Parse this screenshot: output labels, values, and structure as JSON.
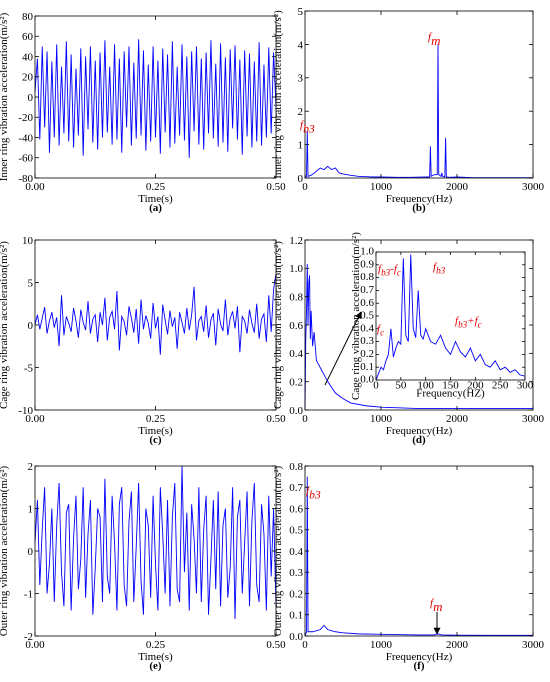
{
  "chart_data": [
    {
      "type": "line",
      "xlabel": "Time(s)",
      "ylabel": "Inner ring vibration acceleration(m/s²)",
      "caption": "(a)",
      "color": "#0000ff",
      "xlim": [
        0,
        0.5
      ],
      "ylim": [
        -80,
        80
      ],
      "xticks": [
        {
          "value": 0,
          "label": "0.00"
        },
        0.25,
        {
          "value": 0.5,
          "label": "0.50"
        }
      ],
      "yticks": [
        -80,
        -60,
        -40,
        -20,
        0,
        20,
        40,
        60,
        80
      ],
      "x": [
        0,
        0.005,
        0.01,
        0.015,
        0.02,
        0.025,
        0.03,
        0.035,
        0.04,
        0.045,
        0.05,
        0.055,
        0.06,
        0.065,
        0.07,
        0.075,
        0.08,
        0.085,
        0.09,
        0.095,
        0.1,
        0.105,
        0.11,
        0.115,
        0.12,
        0.125,
        0.13,
        0.135,
        0.14,
        0.145,
        0.15,
        0.155,
        0.16,
        0.165,
        0.17,
        0.175,
        0.18,
        0.185,
        0.19,
        0.195,
        0.2,
        0.205,
        0.21,
        0.215,
        0.22,
        0.225,
        0.23,
        0.235,
        0.24,
        0.245,
        0.25,
        0.255,
        0.26,
        0.265,
        0.27,
        0.275,
        0.28,
        0.285,
        0.29,
        0.295,
        0.3,
        0.305,
        0.31,
        0.315,
        0.32,
        0.325,
        0.33,
        0.335,
        0.34,
        0.345,
        0.35,
        0.355,
        0.36,
        0.365,
        0.37,
        0.375,
        0.38,
        0.385,
        0.39,
        0.395,
        0.4,
        0.405,
        0.41,
        0.415,
        0.42,
        0.425,
        0.43,
        0.435,
        0.44,
        0.445,
        0.45,
        0.455,
        0.46,
        0.465,
        0.47,
        0.475,
        0.48,
        0.485,
        0.49,
        0.495,
        0.5
      ],
      "values": [
        5,
        38,
        -42,
        50,
        -30,
        45,
        -55,
        35,
        -40,
        52,
        -48,
        30,
        -36,
        55,
        -44,
        42,
        -50,
        28,
        -38,
        48,
        -58,
        40,
        -32,
        50,
        -45,
        36,
        -52,
        44,
        -40,
        56,
        -35,
        30,
        -47,
        52,
        -42,
        38,
        -55,
        45,
        -30,
        50,
        -48,
        34,
        -41,
        57,
        -38,
        46,
        -53,
        32,
        -44,
        50,
        -40,
        36,
        -56,
        48,
        -35,
        42,
        -50,
        55,
        -46,
        30,
        -38,
        52,
        -43,
        40,
        -60,
        45,
        -34,
        50,
        -47,
        38,
        -52,
        44,
        -36,
        56,
        -41,
        33,
        -49,
        53,
        -45,
        39,
        -54,
        47,
        -31,
        51,
        -42,
        37,
        -57,
        46,
        -39,
        43,
        -50,
        35,
        -44,
        54,
        -48,
        32,
        -40,
        49,
        -36,
        44,
        -10
      ],
      "annotations": []
    },
    {
      "type": "line",
      "xlabel": "Frequency(Hz)",
      "ylabel": "Inner ring vibration acceleration(m/s²)",
      "caption": "(b)",
      "color": "#0000ff",
      "xlim": [
        0,
        3000
      ],
      "ylim": [
        0,
        5
      ],
      "xticks": [
        0,
        1000,
        2000,
        3000
      ],
      "yticks": [
        0,
        1,
        2,
        3,
        4,
        5
      ],
      "x": [
        0,
        20,
        30,
        40,
        80,
        150,
        200,
        250,
        300,
        350,
        400,
        450,
        500,
        600,
        700,
        800,
        900,
        1000,
        1200,
        1400,
        1600,
        1640,
        1650,
        1660,
        1700,
        1740,
        1750,
        1760,
        1790,
        1800,
        1810,
        1840,
        1850,
        1860,
        1900,
        2000,
        2200,
        2500,
        3000
      ],
      "values": [
        0,
        0.05,
        1.4,
        0.05,
        0.08,
        0.2,
        0.3,
        0.25,
        0.35,
        0.25,
        0.3,
        0.15,
        0.12,
        0.08,
        0.05,
        0.04,
        0.03,
        0.03,
        0.02,
        0.02,
        0.03,
        0.03,
        0.95,
        0.05,
        0.1,
        0.1,
        4.0,
        0.1,
        0.05,
        0.15,
        0.05,
        0.03,
        1.2,
        0.03,
        0.02,
        0.03,
        0.01,
        0.01,
        0.01
      ],
      "annotations": [
        [
          "f",
          "m"
        ],
        [
          "f",
          "b3"
        ]
      ]
    },
    {
      "type": "line",
      "xlabel": "Time(s)",
      "ylabel": "Cage ring vibration acceleration(m/s²)",
      "caption": "(c)",
      "color": "#0000ff",
      "xlim": [
        0,
        0.5
      ],
      "ylim": [
        -10,
        10
      ],
      "xticks": [
        {
          "value": 0,
          "label": "0.00"
        },
        0.25,
        {
          "value": 0.5,
          "label": "0.50"
        }
      ],
      "yticks": [
        -10,
        -5,
        0,
        5,
        10
      ],
      "x": [
        0,
        0.005,
        0.01,
        0.015,
        0.02,
        0.025,
        0.03,
        0.035,
        0.04,
        0.045,
        0.05,
        0.055,
        0.06,
        0.065,
        0.07,
        0.075,
        0.08,
        0.085,
        0.09,
        0.095,
        0.1,
        0.105,
        0.11,
        0.115,
        0.12,
        0.125,
        0.13,
        0.135,
        0.14,
        0.145,
        0.15,
        0.155,
        0.16,
        0.165,
        0.17,
        0.175,
        0.18,
        0.185,
        0.19,
        0.195,
        0.2,
        0.205,
        0.21,
        0.215,
        0.22,
        0.225,
        0.23,
        0.235,
        0.24,
        0.245,
        0.25,
        0.255,
        0.26,
        0.265,
        0.27,
        0.275,
        0.28,
        0.285,
        0.29,
        0.295,
        0.3,
        0.305,
        0.31,
        0.315,
        0.32,
        0.325,
        0.33,
        0.335,
        0.34,
        0.345,
        0.35,
        0.355,
        0.36,
        0.365,
        0.37,
        0.375,
        0.38,
        0.385,
        0.39,
        0.395,
        0.4,
        0.405,
        0.41,
        0.415,
        0.42,
        0.425,
        0.43,
        0.435,
        0.44,
        0.445,
        0.45,
        0.455,
        0.46,
        0.465,
        0.47,
        0.475,
        0.48,
        0.485,
        0.49,
        0.495,
        0.5
      ],
      "values": [
        0,
        1.2,
        -0.5,
        0.8,
        2.1,
        -1.0,
        0.5,
        1.5,
        -0.3,
        0.9,
        -2.5,
        3.5,
        -1.2,
        1.0,
        0.2,
        -0.8,
        2.0,
        0.5,
        -1.5,
        1.8,
        0.3,
        -0.6,
        2.8,
        -1.0,
        0.7,
        1.2,
        -2.0,
        1.5,
        0.0,
        3.2,
        -1.8,
        0.9,
        1.6,
        -0.5,
        4.0,
        -3.0,
        1.0,
        0.4,
        -1.2,
        2.2,
        0.8,
        -0.9,
        1.9,
        -2.2,
        3.0,
        -0.5,
        1.1,
        0.2,
        -1.6,
        2.6,
        -0.4,
        1.0,
        -3.5,
        2.4,
        0.6,
        -1.1,
        1.7,
        -0.2,
        0.9,
        -2.8,
        1.5,
        0.3,
        -1.0,
        2.0,
        -0.6,
        1.2,
        4.5,
        -1.8,
        0.5,
        1.0,
        -0.8,
        2.3,
        -1.5,
        0.6,
        1.4,
        -2.4,
        1.9,
        0.1,
        -0.7,
        3.0,
        -1.2,
        0.8,
        1.6,
        -0.4,
        2.2,
        -3.2,
        1.0,
        0.5,
        -1.0,
        1.8,
        0.2,
        -0.9,
        2.5,
        -1.6,
        0.7,
        1.3,
        -2.0,
        3.5,
        -0.8,
        4.2,
        6.0
      ],
      "annotations": []
    },
    {
      "type": "line",
      "xlabel": "Frequency(Hz)",
      "ylabel": "Cage ring vibration acceleration(m/s²)",
      "caption": "(d)",
      "color": "#0000ff",
      "xlim": [
        0,
        3000
      ],
      "ylim": [
        0,
        1.2
      ],
      "xticks": [
        0,
        1000,
        2000,
        3000
      ],
      "yticks": [
        {
          "value": 0,
          "label": "0.0"
        },
        0.2,
        0.4,
        0.6,
        0.8,
        {
          "value": 1,
          "label": "1.0"
        },
        1.2
      ],
      "x": [
        0,
        10,
        20,
        30,
        40,
        50,
        60,
        70,
        80,
        100,
        120,
        150,
        200,
        250,
        300,
        400,
        500,
        600,
        800,
        1000,
        1500,
        2000,
        3000
      ],
      "values": [
        0,
        0.5,
        0.7,
        1.03,
        0.6,
        0.9,
        0.95,
        0.5,
        0.7,
        0.45,
        0.55,
        0.35,
        0.3,
        0.25,
        0.2,
        0.12,
        0.08,
        0.05,
        0.03,
        0.02,
        0.01,
        0.01,
        0.01
      ],
      "annotations": []
    },
    {
      "type": "line",
      "xlabel": "Time(s)",
      "ylabel": "Outer ring vibration acceleration(m/s²)",
      "caption": "(e)",
      "color": "#0000ff",
      "xlim": [
        0,
        0.5
      ],
      "ylim": [
        -2,
        2
      ],
      "xticks": [
        {
          "value": 0,
          "label": "0.00"
        },
        0.25,
        {
          "value": 0.5,
          "label": "0.50"
        }
      ],
      "yticks": [
        -2,
        -1,
        0,
        1,
        2
      ],
      "x": [
        0,
        0.005,
        0.01,
        0.015,
        0.02,
        0.025,
        0.03,
        0.035,
        0.04,
        0.045,
        0.05,
        0.055,
        0.06,
        0.065,
        0.07,
        0.075,
        0.08,
        0.085,
        0.09,
        0.095,
        0.1,
        0.105,
        0.11,
        0.115,
        0.12,
        0.125,
        0.13,
        0.135,
        0.14,
        0.145,
        0.15,
        0.155,
        0.16,
        0.165,
        0.17,
        0.175,
        0.18,
        0.185,
        0.19,
        0.195,
        0.2,
        0.205,
        0.21,
        0.215,
        0.22,
        0.225,
        0.23,
        0.235,
        0.24,
        0.245,
        0.25,
        0.255,
        0.26,
        0.265,
        0.27,
        0.275,
        0.28,
        0.285,
        0.29,
        0.295,
        0.3,
        0.305,
        0.31,
        0.315,
        0.32,
        0.325,
        0.33,
        0.335,
        0.34,
        0.345,
        0.35,
        0.355,
        0.36,
        0.365,
        0.37,
        0.375,
        0.38,
        0.385,
        0.39,
        0.395,
        0.4,
        0.405,
        0.41,
        0.415,
        0.42,
        0.425,
        0.43,
        0.435,
        0.44,
        0.445,
        0.45,
        0.455,
        0.46,
        0.465,
        0.47,
        0.475,
        0.48,
        0.485,
        0.49,
        0.495,
        0.5
      ],
      "values": [
        0.2,
        1.2,
        -0.8,
        0.5,
        1.5,
        -1.0,
        -0.3,
        1.0,
        -1.2,
        0.6,
        1.6,
        -0.5,
        -1.3,
        0.9,
        1.1,
        -1.4,
        0.3,
        1.3,
        -0.9,
        -0.2,
        1.5,
        -1.1,
        0.4,
        1.2,
        -1.5,
        -0.4,
        1.0,
        0.8,
        -1.2,
        1.7,
        -0.6,
        -1.0,
        1.3,
        0.2,
        -1.4,
        1.1,
        1.5,
        -0.8,
        -1.3,
        0.7,
        1.4,
        -1.2,
        0.1,
        1.6,
        -0.7,
        -1.5,
        1.0,
        0.6,
        -1.1,
        1.3,
        -0.3,
        -1.4,
        1.5,
        0.4,
        -1.0,
        1.2,
        -1.3,
        0.8,
        1.6,
        -0.9,
        -1.2,
        2.0,
        -0.5,
        0.9,
        -1.4,
        1.1,
        0.3,
        -1.0,
        1.5,
        -1.2,
        0.5,
        1.3,
        -1.5,
        -0.2,
        1.2,
        -0.9,
        1.4,
        -1.3,
        0.6,
        1.0,
        -1.1,
        -0.4,
        1.5,
        -1.6,
        0.8,
        1.2,
        -1.0,
        0.2,
        1.4,
        -1.3,
        0.7,
        1.6,
        -0.8,
        -1.2,
        1.1,
        0.4,
        -1.4,
        1.3,
        -0.6,
        1.0,
        -1.3
      ],
      "annotations": []
    },
    {
      "type": "line",
      "xlabel": "Frequency(Hz)",
      "ylabel": "Outer ring vibration acceleration(m/s²)",
      "caption": "(f)",
      "color": "#0000ff",
      "xlim": [
        0,
        3000
      ],
      "ylim": [
        0,
        0.8
      ],
      "xticks": [
        0,
        1000,
        2000,
        3000
      ],
      "yticks": [
        {
          "value": 0,
          "label": "0.0"
        },
        0.1,
        0.2,
        0.3,
        0.4,
        0.5,
        0.6,
        0.7,
        0.8
      ],
      "x": [
        0,
        20,
        30,
        40,
        100,
        200,
        250,
        300,
        400,
        500,
        700,
        1000,
        1500,
        1700,
        1750,
        1800,
        2000,
        2500,
        3000
      ],
      "values": [
        0,
        0.02,
        0.75,
        0.02,
        0.02,
        0.03,
        0.05,
        0.03,
        0.02,
        0.015,
        0.01,
        0.008,
        0.005,
        0.005,
        0.01,
        0.005,
        0.004,
        0.003,
        0.003
      ],
      "annotations": [
        [
          "f",
          "b3"
        ],
        [
          "f",
          "m"
        ]
      ]
    },
    {
      "type": "line",
      "xlabel": "Frequency(HZ)",
      "ylabel": "Cage ring vibration acceleration(m/s²)",
      "color": "#0000ff",
      "xlim": [
        0,
        300
      ],
      "ylim": [
        0,
        1
      ],
      "xticks": [
        0,
        50,
        100,
        150,
        200,
        250,
        300
      ],
      "yticks": [
        {
          "value": 0,
          "label": "0.0"
        },
        0.1,
        0.2,
        0.3,
        0.4,
        0.5,
        0.6,
        0.7,
        0.8,
        0.9,
        {
          "value": 1,
          "label": "1.0"
        }
      ],
      "x": [
        0,
        5,
        10,
        15,
        20,
        25,
        30,
        35,
        40,
        45,
        50,
        55,
        60,
        65,
        70,
        75,
        80,
        85,
        90,
        95,
        100,
        110,
        120,
        130,
        140,
        150,
        160,
        170,
        180,
        190,
        200,
        210,
        220,
        230,
        240,
        250,
        260,
        270,
        280,
        290,
        300
      ],
      "values": [
        0,
        0.05,
        0.1,
        0.08,
        0.15,
        0.2,
        0.4,
        0.18,
        0.25,
        0.3,
        0.28,
        0.95,
        0.35,
        0.3,
        0.98,
        0.4,
        0.33,
        0.7,
        0.35,
        0.32,
        0.4,
        0.3,
        0.28,
        0.35,
        0.25,
        0.2,
        0.3,
        0.22,
        0.18,
        0.25,
        0.15,
        0.2,
        0.12,
        0.1,
        0.15,
        0.08,
        0.1,
        0.06,
        0.08,
        0.04,
        0.03
      ],
      "annotations": [
        [
          "f",
          "b3",
          "-f",
          "c"
        ],
        [
          "f",
          "b3"
        ],
        [
          "f",
          "b3",
          "+f",
          "c"
        ],
        [
          "f",
          "c"
        ]
      ]
    }
  ]
}
